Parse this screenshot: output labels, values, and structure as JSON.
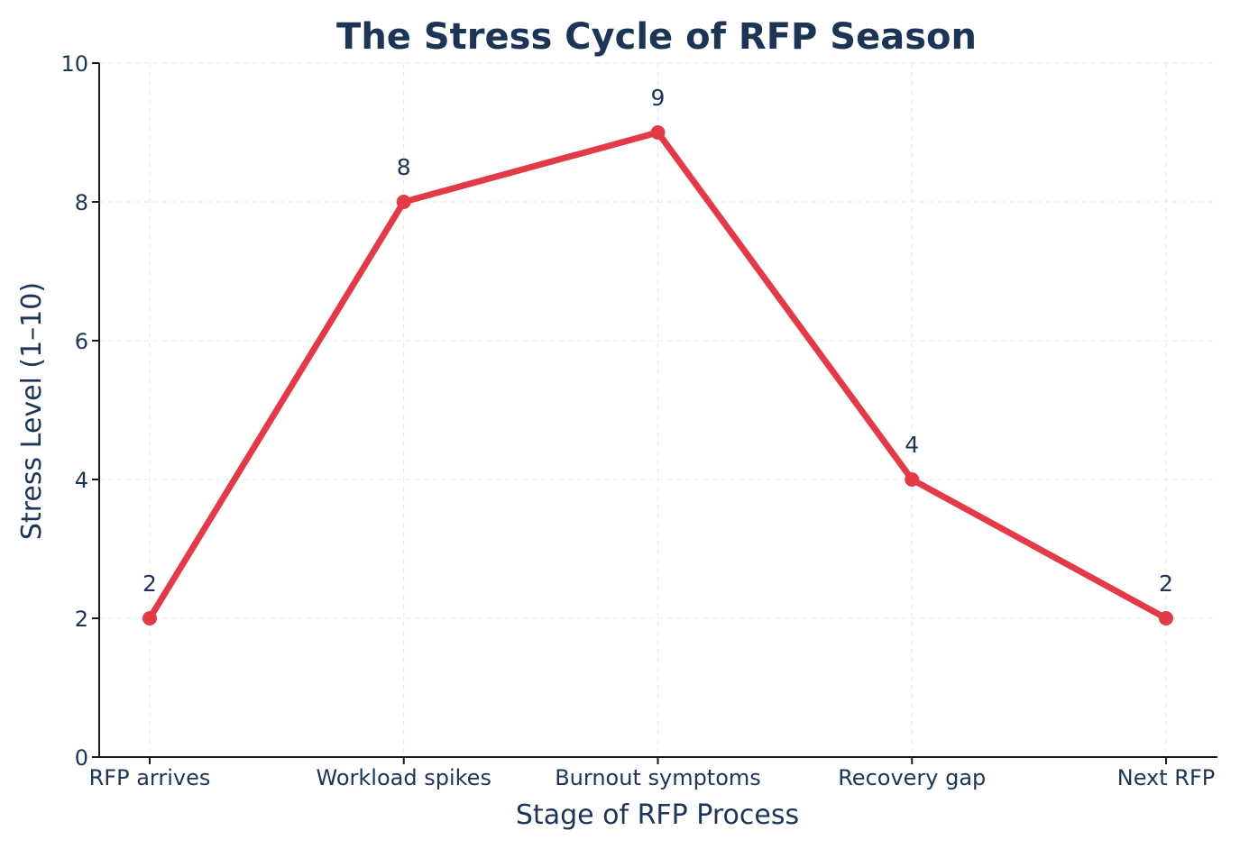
{
  "chart_data": {
    "type": "line",
    "title": "The Stress Cycle of RFP Season",
    "xlabel": "Stage of RFP Process",
    "ylabel": "Stress Level (1–10)",
    "categories": [
      "RFP arrives",
      "Workload spikes",
      "Burnout symptoms",
      "Recovery gap",
      "Next RFP"
    ],
    "values": [
      2,
      8,
      9,
      4,
      2
    ],
    "ylim": [
      0,
      10
    ],
    "yticks": [
      0,
      2,
      4,
      6,
      8,
      10
    ],
    "grid": true,
    "data_labels": true,
    "colors": {
      "line": "#e23a46",
      "text": "#1c3456",
      "grid": "#d9ece7"
    }
  }
}
